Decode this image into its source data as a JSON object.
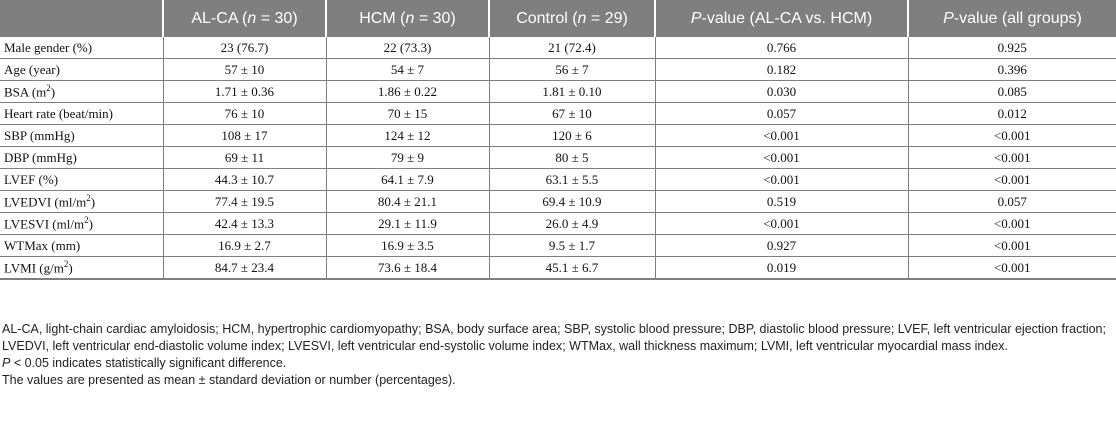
{
  "table": {
    "header": {
      "blank": "",
      "col1_prefix": "AL-CA (",
      "col1_var": "n",
      "col1_suffix": " = 30)",
      "col2_prefix": "HCM (",
      "col2_var": "n",
      "col2_suffix": " = 30)",
      "col3_prefix": "Control (",
      "col3_var": "n",
      "col3_suffix": " = 29)",
      "col4_var": "P",
      "col4_suffix": "-value (AL-CA vs. HCM)",
      "col5_var": "P",
      "col5_suffix": "-value (all groups)"
    },
    "rows": [
      {
        "label": "Male gender (%)",
        "alca": "23 (76.7)",
        "hcm": "22 (73.3)",
        "control": "21 (72.4)",
        "p_alca_hcm": "0.766",
        "p_all": "0.925"
      },
      {
        "label": "Age (year)",
        "alca": "57 ± 10",
        "hcm": "54 ± 7",
        "control": "56 ± 7",
        "p_alca_hcm": "0.182",
        "p_all": "0.396"
      },
      {
        "label": "BSA (m",
        "label_sup": "2",
        "label_end": ")",
        "alca": "1.71 ± 0.36",
        "hcm": "1.86 ± 0.22",
        "control": "1.81 ± 0.10",
        "p_alca_hcm": "0.030",
        "p_all": "0.085"
      },
      {
        "label": "Heart rate (beat/min)",
        "alca": "76 ± 10",
        "hcm": "70 ± 15",
        "control": "67 ± 10",
        "p_alca_hcm": "0.057",
        "p_all": "0.012"
      },
      {
        "label": "SBP (mmHg)",
        "alca": "108 ± 17",
        "hcm": "124 ± 12",
        "control": "120 ± 6",
        "p_alca_hcm": "<0.001",
        "p_all": "<0.001"
      },
      {
        "label": "DBP (mmHg)",
        "alca": "69 ± 11",
        "hcm": "79 ± 9",
        "control": "80 ± 5",
        "p_alca_hcm": "<0.001",
        "p_all": "<0.001"
      },
      {
        "label": "LVEF (%)",
        "alca": "44.3 ± 10.7",
        "hcm": "64.1 ± 7.9",
        "control": "63.1 ± 5.5",
        "p_alca_hcm": "<0.001",
        "p_all": "<0.001"
      },
      {
        "label": "LVEDVI (ml/m",
        "label_sup": "2",
        "label_end": ")",
        "alca": "77.4 ± 19.5",
        "hcm": "80.4 ± 21.1",
        "control": "69.4 ± 10.9",
        "p_alca_hcm": "0.519",
        "p_all": "0.057"
      },
      {
        "label": "LVESVI (ml/m",
        "label_sup": "2",
        "label_end": ")",
        "alca": "42.4 ± 13.3",
        "hcm": "29.1 ± 11.9",
        "control": "26.0 ± 4.9",
        "p_alca_hcm": "<0.001",
        "p_all": "<0.001"
      },
      {
        "label": "WTMax (mm)",
        "alca": "16.9 ± 2.7",
        "hcm": "16.9 ± 3.5",
        "control": "9.5 ± 1.7",
        "p_alca_hcm": "0.927",
        "p_all": "<0.001"
      },
      {
        "label": "LVMI (g/m",
        "label_sup": "2",
        "label_end": ")",
        "alca": "84.7 ± 23.4",
        "hcm": "73.6 ± 18.4",
        "control": "45.1 ± 6.7",
        "p_alca_hcm": "0.019",
        "p_all": "<0.001"
      }
    ]
  },
  "footnotes": {
    "abbreviations": "AL-CA, light-chain cardiac amyloidosis; HCM, hypertrophic cardiomyopathy; BSA, body surface area; SBP, systolic blood pressure; DBP, diastolic blood pressure; LVEF, left ventricular ejection fraction; LVEDVI, left ventricular end-diastolic volume index; LVESVI, left ventricular end-systolic volume index; WTMax, wall thickness maximum; LVMI, left ventricular myocardial mass index.",
    "significance_var": "P",
    "significance_text": " < 0.05 indicates statistically significant difference.",
    "values_note": "The values are presented as mean ± standard deviation or number (percentages)."
  }
}
